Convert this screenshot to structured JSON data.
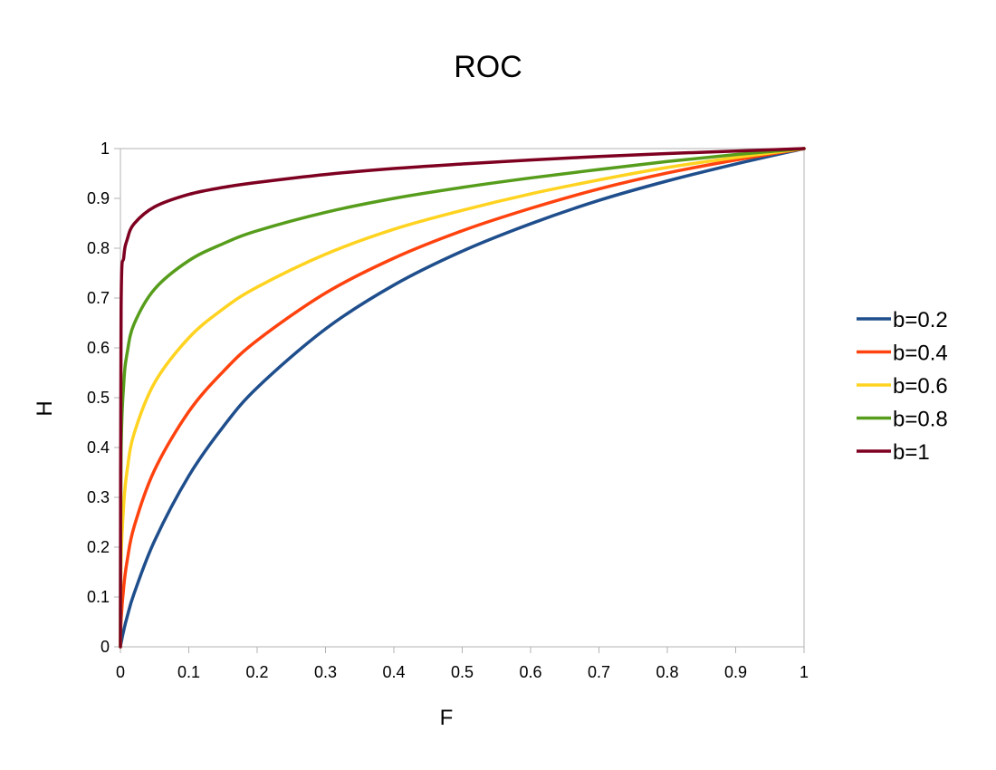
{
  "chart_data": {
    "type": "line",
    "title": "ROC",
    "xlabel": "F",
    "ylabel": "H",
    "xlim": [
      0,
      1
    ],
    "ylim": [
      0,
      1
    ],
    "x_ticks": [
      "0",
      "0.1",
      "0.2",
      "0.3",
      "0.4",
      "0.5",
      "0.6",
      "0.7",
      "0.8",
      "0.9",
      "1"
    ],
    "y_ticks": [
      "0",
      "0.1",
      "0.2",
      "0.3",
      "0.4",
      "0.5",
      "0.6",
      "0.7",
      "0.8",
      "0.9",
      "1"
    ],
    "grid": false,
    "legend_position": "right",
    "x": [
      0,
      0.001,
      0.005,
      0.01,
      0.02,
      0.05,
      0.1,
      0.15,
      0.2,
      0.3,
      0.4,
      0.5,
      0.6,
      0.7,
      0.8,
      0.9,
      1.0
    ],
    "series": [
      {
        "name": "b=0.2",
        "color": "#1f4e8c",
        "values": [
          0,
          0.008,
          0.034,
          0.061,
          0.107,
          0.213,
          0.343,
          0.441,
          0.52,
          0.638,
          0.726,
          0.794,
          0.849,
          0.896,
          0.935,
          0.969,
          1.0
        ]
      },
      {
        "name": "b=0.4",
        "color": "#ff420e",
        "values": [
          0,
          0.054,
          0.123,
          0.174,
          0.241,
          0.355,
          0.472,
          0.552,
          0.615,
          0.71,
          0.78,
          0.835,
          0.88,
          0.919,
          0.951,
          0.977,
          1.0
        ]
      },
      {
        "name": "b=0.6",
        "color": "#ffd320",
        "values": [
          0,
          0.174,
          0.29,
          0.356,
          0.428,
          0.53,
          0.62,
          0.678,
          0.722,
          0.788,
          0.838,
          0.876,
          0.909,
          0.937,
          0.962,
          0.982,
          1.0
        ]
      },
      {
        "name": "b=0.8",
        "color": "#579d1c",
        "values": [
          0,
          0.391,
          0.531,
          0.591,
          0.648,
          0.718,
          0.775,
          0.809,
          0.835,
          0.872,
          0.9,
          0.922,
          0.941,
          0.958,
          0.974,
          0.988,
          1.0
        ]
      },
      {
        "name": "b=1",
        "color": "#7e0021",
        "values": [
          0,
          0.68,
          0.783,
          0.818,
          0.849,
          0.883,
          0.908,
          0.922,
          0.932,
          0.948,
          0.96,
          0.969,
          0.977,
          0.984,
          0.99,
          0.995,
          1.0
        ]
      }
    ]
  }
}
